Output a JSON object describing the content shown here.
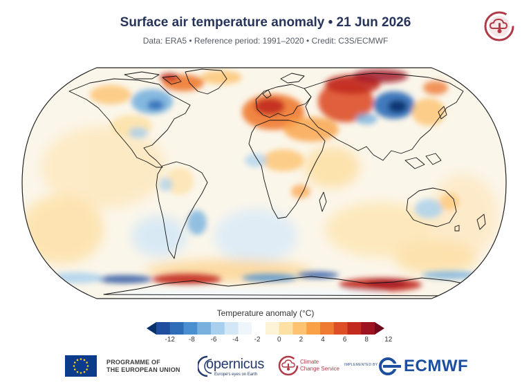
{
  "header": {
    "title": "Surface air temperature anomaly • 21 Jun 2026",
    "subtitle": "Data: ERA5 • Reference period: 1991–2020 • Credit: C3S/ECMWF"
  },
  "legend": {
    "title": "Temperature anomaly (°C)",
    "tick_labels": [
      "-12",
      "-8",
      "-6",
      "-4",
      "-2",
      "0",
      "2",
      "4",
      "6",
      "8",
      "12"
    ],
    "colors": [
      "#08306b",
      "#1f4e9e",
      "#2f6db8",
      "#4a8fcf",
      "#78b1de",
      "#a8d0ee",
      "#d3e8f7",
      "#eef6fb",
      "#ffffff",
      "#fdf3d6",
      "#fde0a4",
      "#fdc370",
      "#f9a146",
      "#ef7a32",
      "#dd4f27",
      "#c22a1f",
      "#9d1420",
      "#6f0b1c"
    ]
  },
  "map": {
    "icon": "world-map-robinson",
    "regions": [
      "North America",
      "South America",
      "Greenland",
      "Europe",
      "Africa",
      "Asia",
      "Australia",
      "Antarctica"
    ]
  },
  "footer": {
    "eu_line1": "PROGRAMME OF",
    "eu_line2": "THE EUROPEAN UNION",
    "copernicus": "opernicus",
    "copernicus_tag": "Europe's eyes on Earth",
    "c3s_line1": "Climate",
    "c3s_line2": "Change Service",
    "implemented_by": "IMPLEMENTED BY",
    "ecmwf": "ECMWF"
  }
}
